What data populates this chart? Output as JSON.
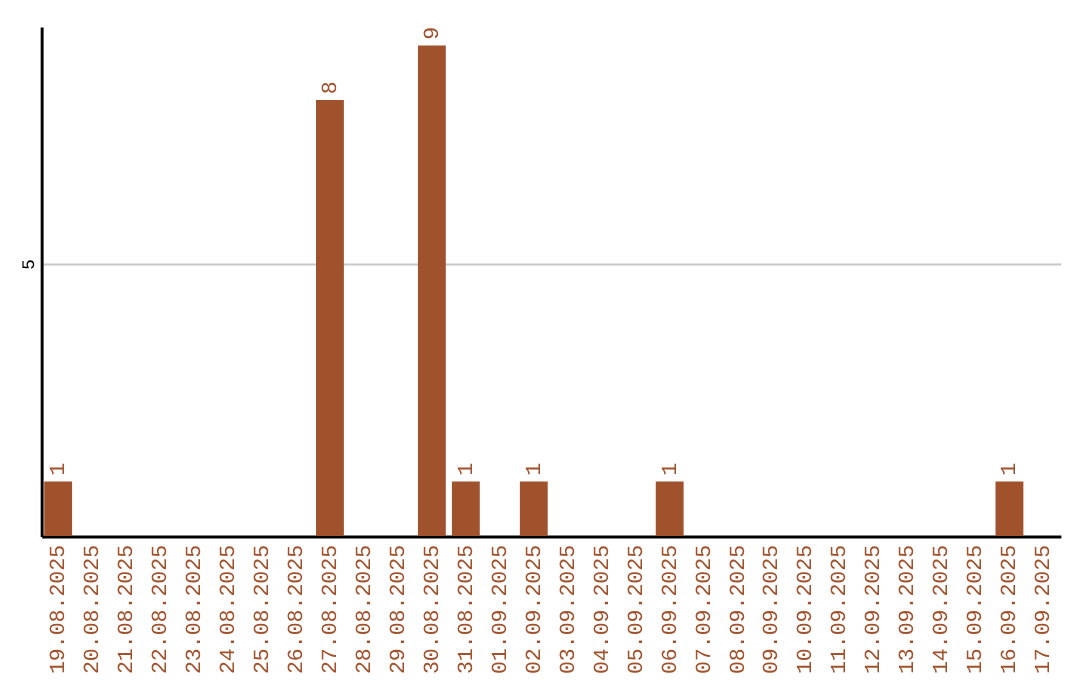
{
  "chart_data": {
    "type": "bar",
    "categories": [
      "19.08.2025",
      "20.08.2025",
      "21.08.2025",
      "22.08.2025",
      "23.08.2025",
      "24.08.2025",
      "25.08.2025",
      "26.08.2025",
      "27.08.2025",
      "28.08.2025",
      "29.08.2025",
      "30.08.2025",
      "31.08.2025",
      "01.09.2025",
      "02.09.2025",
      "03.09.2025",
      "04.09.2025",
      "05.09.2025",
      "06.09.2025",
      "07.09.2025",
      "08.09.2025",
      "09.09.2025",
      "10.09.2025",
      "11.09.2025",
      "12.09.2025",
      "13.09.2025",
      "14.09.2025",
      "15.09.2025",
      "16.09.2025",
      "17.09.2025"
    ],
    "values": [
      1,
      0,
      0,
      0,
      0,
      0,
      0,
      0,
      8,
      0,
      0,
      9,
      1,
      0,
      1,
      0,
      0,
      0,
      1,
      0,
      0,
      0,
      0,
      0,
      0,
      0,
      0,
      0,
      1,
      0
    ],
    "value_labels": [
      "1",
      null,
      null,
      null,
      null,
      null,
      null,
      null,
      "8",
      null,
      null,
      "9",
      "1",
      null,
      "1",
      null,
      null,
      null,
      "1",
      null,
      null,
      null,
      null,
      null,
      null,
      null,
      null,
      null,
      "1",
      null
    ],
    "color": "#a0522d",
    "ylim": [
      0,
      9.35
    ],
    "yticks": [
      5
    ],
    "grid": "y"
  }
}
